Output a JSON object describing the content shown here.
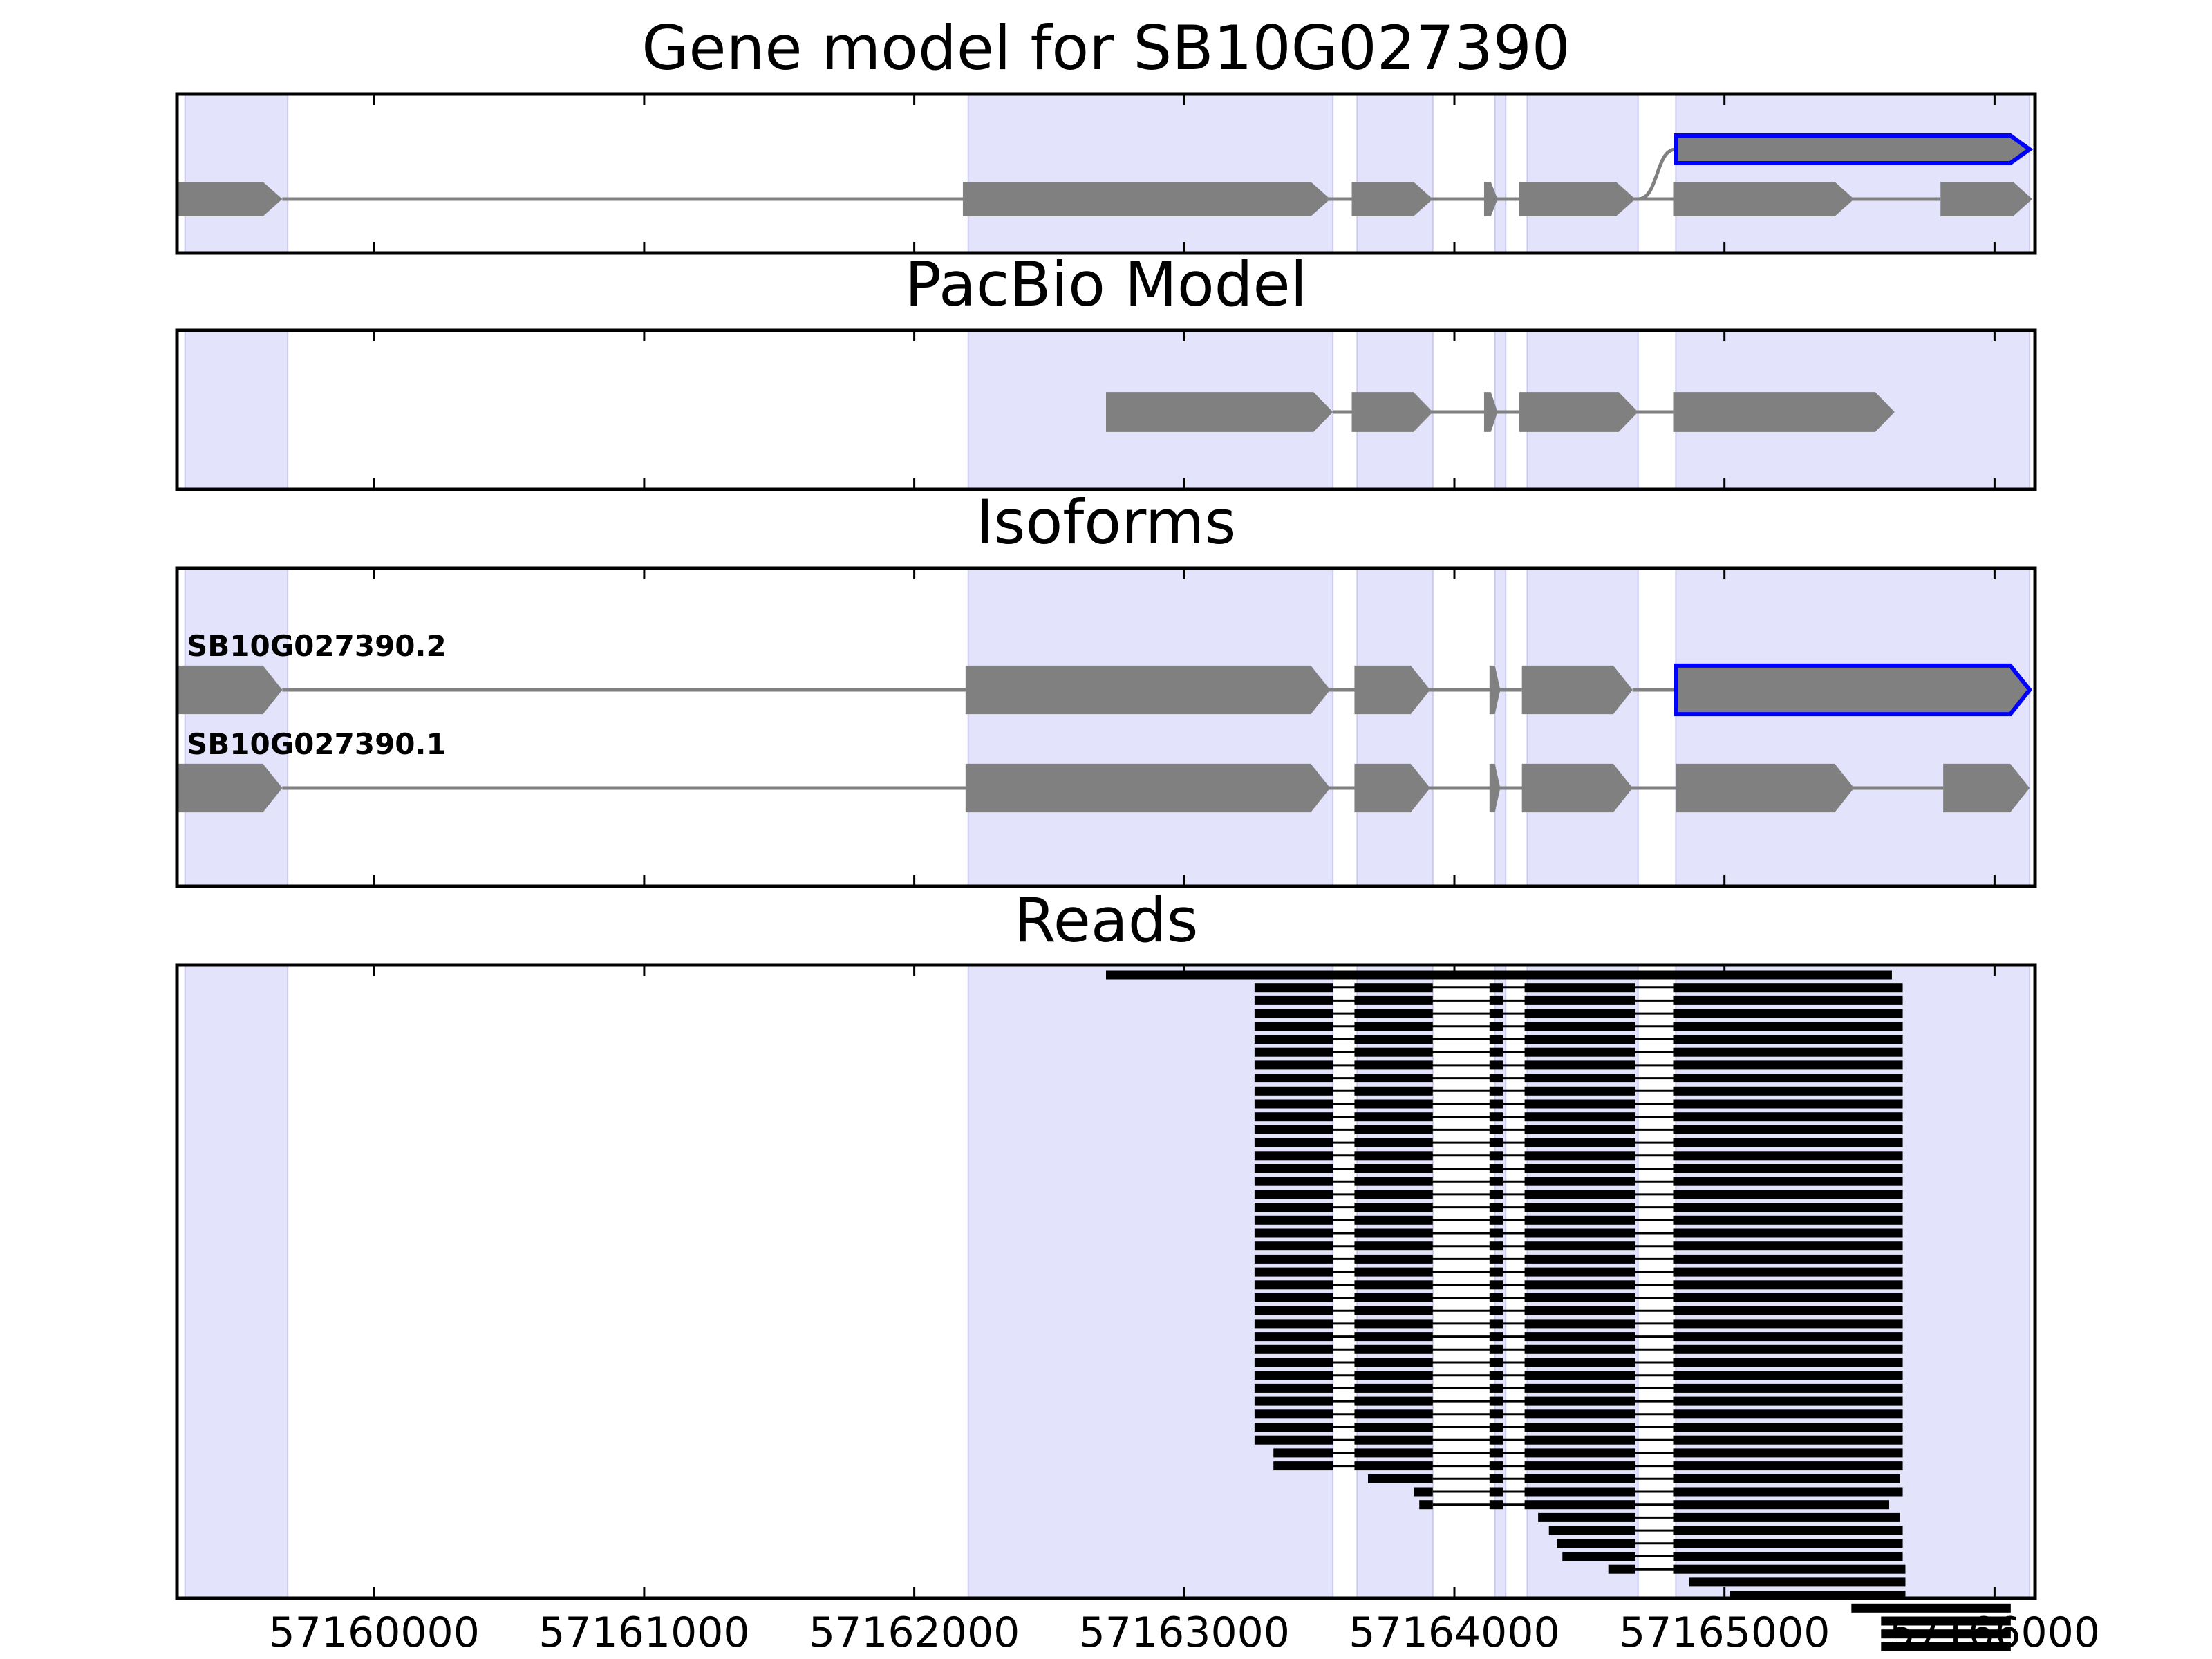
{
  "colors": {
    "shade": "#e3e3fc",
    "shade_edge": "#c9c9ef",
    "exon": "#808080",
    "intron": "#808080",
    "highlight": "#0000ff",
    "read": "#000000",
    "frame": "#000000"
  },
  "x_axis": {
    "range": [
      57159270,
      57166150
    ],
    "ticks": [
      57160000,
      57161000,
      57162000,
      57163000,
      57164000,
      57165000,
      57166000
    ],
    "tick_labels": [
      "57160000",
      "57161000",
      "57162000",
      "57163000",
      "57164000",
      "57165000",
      "57166000"
    ]
  },
  "shaded_regions": [
    [
      57159300,
      57159680
    ],
    [
      57162200,
      57163550
    ],
    [
      57163640,
      57163920
    ],
    [
      57164150,
      57164190
    ],
    [
      57164270,
      57164680
    ],
    [
      57164820,
      57166130
    ]
  ],
  "panels": [
    {
      "key": "gene_model",
      "title": "Gene model for SB10G027390",
      "transcripts": [
        {
          "label": "",
          "highlighted": true,
          "lane": 1.5,
          "exons": [
            [
              57164820,
              57166130
            ]
          ],
          "connect_from": 57164680
        },
        {
          "label": "",
          "highlighted": false,
          "lane": 2.2,
          "exons": [
            [
              57159270,
              57159660
            ],
            [
              57162180,
              57163540
            ],
            [
              57163620,
              57163920
            ],
            [
              57164110,
              57164160
            ],
            [
              57164240,
              57164670
            ],
            [
              57164810,
              57165480
            ],
            [
              57165800,
              57166140
            ]
          ]
        }
      ]
    },
    {
      "key": "pacbio_model",
      "title": "PacBio Model",
      "transcripts": [
        {
          "label": "",
          "highlighted": false,
          "lane": 2,
          "exons": [
            [
              57162710,
              57163550
            ],
            [
              57163620,
              57163920
            ],
            [
              57164110,
              57164160
            ],
            [
              57164240,
              57164680
            ],
            [
              57164810,
              57165630
            ]
          ]
        }
      ]
    },
    {
      "key": "isoforms",
      "title": "Isoforms",
      "transcripts": [
        {
          "label": "SB10G027390.2",
          "highlighted": false,
          "lane": 1.55,
          "exons": [
            [
              57159270,
              57159660
            ],
            [
              57162190,
              57163540
            ],
            [
              57163630,
              57163910
            ],
            [
              57164130,
              57164170
            ],
            [
              57164250,
              57164660
            ]
          ]
        },
        {
          "label": "",
          "highlighted": true,
          "lane": 1.55,
          "exons": [
            [
              57164820,
              57166130
            ]
          ],
          "connect_from": 57164660
        },
        {
          "label": "SB10G027390.1",
          "highlighted": false,
          "lane": 2.6,
          "exons": [
            [
              57159270,
              57159660
            ],
            [
              57162190,
              57163540
            ],
            [
              57163630,
              57163910
            ],
            [
              57164130,
              57164170
            ],
            [
              57164250,
              57164660
            ],
            [
              57164820,
              57165480
            ],
            [
              57165810,
              57166130
            ]
          ]
        }
      ]
    },
    {
      "key": "reads",
      "title": "Reads"
    }
  ],
  "reads": [
    [
      [
        57162710,
        57165620
      ]
    ],
    [
      [
        57163260,
        57163550
      ],
      [
        57163630,
        57163920
      ],
      [
        57164130,
        57164180
      ],
      [
        57164260,
        57164670
      ],
      [
        57164810,
        57165660
      ]
    ],
    [
      [
        57163260,
        57163550
      ],
      [
        57163630,
        57163920
      ],
      [
        57164130,
        57164180
      ],
      [
        57164260,
        57164670
      ],
      [
        57164810,
        57165660
      ]
    ],
    [
      [
        57163260,
        57163550
      ],
      [
        57163630,
        57163920
      ],
      [
        57164130,
        57164180
      ],
      [
        57164260,
        57164670
      ],
      [
        57164810,
        57165660
      ]
    ],
    [
      [
        57163260,
        57163550
      ],
      [
        57163630,
        57163920
      ],
      [
        57164130,
        57164180
      ],
      [
        57164260,
        57164670
      ],
      [
        57164810,
        57165660
      ]
    ],
    [
      [
        57163260,
        57163550
      ],
      [
        57163630,
        57163920
      ],
      [
        57164130,
        57164180
      ],
      [
        57164260,
        57164670
      ],
      [
        57164810,
        57165660
      ]
    ],
    [
      [
        57163260,
        57163550
      ],
      [
        57163630,
        57163920
      ],
      [
        57164130,
        57164180
      ],
      [
        57164260,
        57164670
      ],
      [
        57164810,
        57165660
      ]
    ],
    [
      [
        57163260,
        57163550
      ],
      [
        57163630,
        57163920
      ],
      [
        57164130,
        57164180
      ],
      [
        57164260,
        57164670
      ],
      [
        57164810,
        57165660
      ]
    ],
    [
      [
        57163260,
        57163550
      ],
      [
        57163630,
        57163920
      ],
      [
        57164130,
        57164180
      ],
      [
        57164260,
        57164670
      ],
      [
        57164810,
        57165660
      ]
    ],
    [
      [
        57163260,
        57163550
      ],
      [
        57163630,
        57163920
      ],
      [
        57164130,
        57164180
      ],
      [
        57164260,
        57164670
      ],
      [
        57164810,
        57165660
      ]
    ],
    [
      [
        57163260,
        57163550
      ],
      [
        57163630,
        57163920
      ],
      [
        57164130,
        57164180
      ],
      [
        57164260,
        57164670
      ],
      [
        57164810,
        57165660
      ]
    ],
    [
      [
        57163260,
        57163550
      ],
      [
        57163630,
        57163920
      ],
      [
        57164130,
        57164180
      ],
      [
        57164260,
        57164670
      ],
      [
        57164810,
        57165660
      ]
    ],
    [
      [
        57163260,
        57163550
      ],
      [
        57163630,
        57163920
      ],
      [
        57164130,
        57164180
      ],
      [
        57164260,
        57164670
      ],
      [
        57164810,
        57165660
      ]
    ],
    [
      [
        57163260,
        57163550
      ],
      [
        57163630,
        57163920
      ],
      [
        57164130,
        57164180
      ],
      [
        57164260,
        57164670
      ],
      [
        57164810,
        57165660
      ]
    ],
    [
      [
        57163260,
        57163550
      ],
      [
        57163630,
        57163920
      ],
      [
        57164130,
        57164180
      ],
      [
        57164260,
        57164670
      ],
      [
        57164810,
        57165660
      ]
    ],
    [
      [
        57163260,
        57163550
      ],
      [
        57163630,
        57163920
      ],
      [
        57164130,
        57164180
      ],
      [
        57164260,
        57164670
      ],
      [
        57164810,
        57165660
      ]
    ],
    [
      [
        57163260,
        57163550
      ],
      [
        57163630,
        57163920
      ],
      [
        57164130,
        57164180
      ],
      [
        57164260,
        57164670
      ],
      [
        57164810,
        57165660
      ]
    ],
    [
      [
        57163260,
        57163550
      ],
      [
        57163630,
        57163920
      ],
      [
        57164130,
        57164180
      ],
      [
        57164260,
        57164670
      ],
      [
        57164810,
        57165660
      ]
    ],
    [
      [
        57163260,
        57163550
      ],
      [
        57163630,
        57163920
      ],
      [
        57164130,
        57164180
      ],
      [
        57164260,
        57164670
      ],
      [
        57164810,
        57165660
      ]
    ],
    [
      [
        57163260,
        57163550
      ],
      [
        57163630,
        57163920
      ],
      [
        57164130,
        57164180
      ],
      [
        57164260,
        57164670
      ],
      [
        57164810,
        57165660
      ]
    ],
    [
      [
        57163260,
        57163550
      ],
      [
        57163630,
        57163920
      ],
      [
        57164130,
        57164180
      ],
      [
        57164260,
        57164670
      ],
      [
        57164810,
        57165660
      ]
    ],
    [
      [
        57163260,
        57163550
      ],
      [
        57163630,
        57163920
      ],
      [
        57164130,
        57164180
      ],
      [
        57164260,
        57164670
      ],
      [
        57164810,
        57165660
      ]
    ],
    [
      [
        57163260,
        57163550
      ],
      [
        57163630,
        57163920
      ],
      [
        57164130,
        57164180
      ],
      [
        57164260,
        57164670
      ],
      [
        57164810,
        57165660
      ]
    ],
    [
      [
        57163260,
        57163550
      ],
      [
        57163630,
        57163920
      ],
      [
        57164130,
        57164180
      ],
      [
        57164260,
        57164670
      ],
      [
        57164810,
        57165660
      ]
    ],
    [
      [
        57163260,
        57163550
      ],
      [
        57163630,
        57163920
      ],
      [
        57164130,
        57164180
      ],
      [
        57164260,
        57164670
      ],
      [
        57164810,
        57165660
      ]
    ],
    [
      [
        57163260,
        57163550
      ],
      [
        57163630,
        57163920
      ],
      [
        57164130,
        57164180
      ],
      [
        57164260,
        57164670
      ],
      [
        57164810,
        57165660
      ]
    ],
    [
      [
        57163260,
        57163550
      ],
      [
        57163630,
        57163920
      ],
      [
        57164130,
        57164180
      ],
      [
        57164260,
        57164670
      ],
      [
        57164810,
        57165660
      ]
    ],
    [
      [
        57163260,
        57163550
      ],
      [
        57163630,
        57163920
      ],
      [
        57164130,
        57164180
      ],
      [
        57164260,
        57164670
      ],
      [
        57164810,
        57165660
      ]
    ],
    [
      [
        57163260,
        57163550
      ],
      [
        57163630,
        57163920
      ],
      [
        57164130,
        57164180
      ],
      [
        57164260,
        57164670
      ],
      [
        57164810,
        57165660
      ]
    ],
    [
      [
        57163260,
        57163550
      ],
      [
        57163630,
        57163920
      ],
      [
        57164130,
        57164180
      ],
      [
        57164260,
        57164670
      ],
      [
        57164810,
        57165660
      ]
    ],
    [
      [
        57163260,
        57163550
      ],
      [
        57163630,
        57163920
      ],
      [
        57164130,
        57164180
      ],
      [
        57164260,
        57164670
      ],
      [
        57164810,
        57165660
      ]
    ],
    [
      [
        57163260,
        57163550
      ],
      [
        57163630,
        57163920
      ],
      [
        57164130,
        57164180
      ],
      [
        57164260,
        57164670
      ],
      [
        57164810,
        57165660
      ]
    ],
    [
      [
        57163260,
        57163550
      ],
      [
        57163630,
        57163920
      ],
      [
        57164130,
        57164180
      ],
      [
        57164260,
        57164670
      ],
      [
        57164810,
        57165660
      ]
    ],
    [
      [
        57163260,
        57163550
      ],
      [
        57163630,
        57163920
      ],
      [
        57164130,
        57164180
      ],
      [
        57164260,
        57164670
      ],
      [
        57164810,
        57165660
      ]
    ],
    [
      [
        57163260,
        57163550
      ],
      [
        57163630,
        57163920
      ],
      [
        57164130,
        57164180
      ],
      [
        57164260,
        57164670
      ],
      [
        57164810,
        57165660
      ]
    ],
    [
      [
        57163260,
        57163550
      ],
      [
        57163630,
        57163920
      ],
      [
        57164130,
        57164180
      ],
      [
        57164260,
        57164670
      ],
      [
        57164810,
        57165660
      ]
    ],
    [
      [
        57163260,
        57163550
      ],
      [
        57163630,
        57163920
      ],
      [
        57164130,
        57164180
      ],
      [
        57164260,
        57164670
      ],
      [
        57164810,
        57165660
      ]
    ],
    [
      [
        57163330,
        57163550
      ],
      [
        57163630,
        57163920
      ],
      [
        57164130,
        57164180
      ],
      [
        57164260,
        57164670
      ],
      [
        57164810,
        57165660
      ]
    ],
    [
      [
        57163330,
        57163550
      ],
      [
        57163630,
        57163920
      ],
      [
        57164130,
        57164180
      ],
      [
        57164260,
        57164670
      ],
      [
        57164810,
        57165660
      ]
    ],
    [
      [
        57163680,
        57163920
      ],
      [
        57164130,
        57164180
      ],
      [
        57164260,
        57164670
      ],
      [
        57164810,
        57165650
      ]
    ],
    [
      [
        57163850,
        57163920
      ],
      [
        57164130,
        57164180
      ],
      [
        57164260,
        57164670
      ],
      [
        57164810,
        57165660
      ]
    ],
    [
      [
        57163870,
        57163920
      ],
      [
        57164130,
        57164180
      ],
      [
        57164260,
        57164670
      ],
      [
        57164810,
        57165610
      ]
    ],
    [
      [
        57164310,
        57164670
      ],
      [
        57164810,
        57165650
      ]
    ],
    [
      [
        57164350,
        57164670
      ],
      [
        57164810,
        57165660
      ]
    ],
    [
      [
        57164380,
        57164670
      ],
      [
        57164810,
        57165660
      ]
    ],
    [
      [
        57164400,
        57164670
      ],
      [
        57164810,
        57165660
      ]
    ],
    [
      [
        57164570,
        57164670
      ],
      [
        57164810,
        57165670
      ]
    ],
    [
      [
        57164870,
        57165670
      ]
    ],
    [
      [
        57165020,
        57165670
      ]
    ],
    [
      [
        57165470,
        57166060
      ]
    ],
    [
      [
        57165580,
        57166060
      ]
    ],
    [
      [
        57165580,
        57166060
      ]
    ],
    [
      [
        57165580,
        57166060
      ]
    ]
  ]
}
